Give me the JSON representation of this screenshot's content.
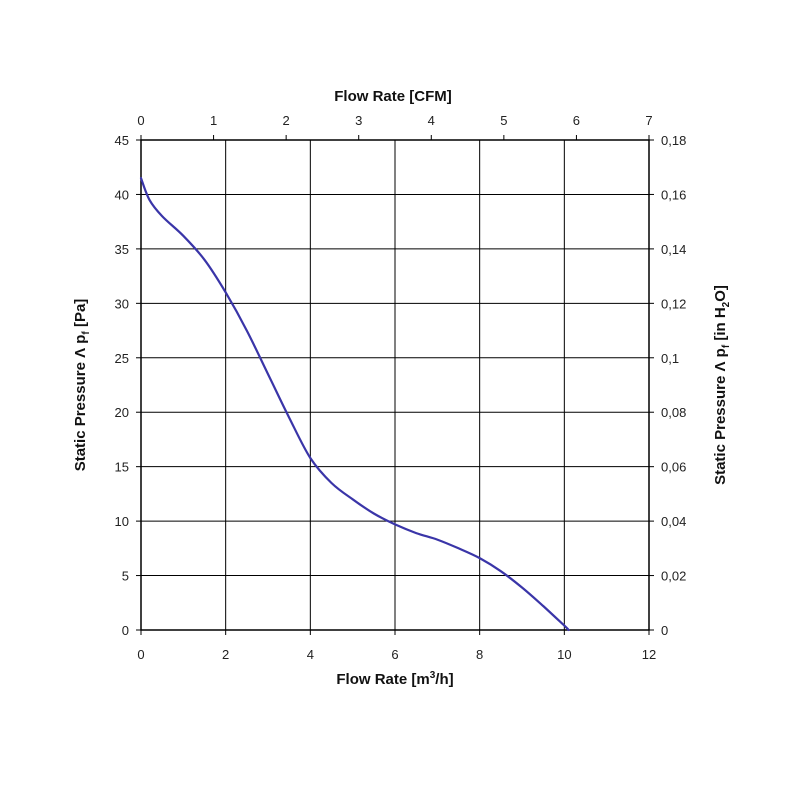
{
  "chart_data": {
    "type": "line",
    "title": "",
    "xlabel": {
      "prefix": "Flow Rate [m",
      "sup": "3",
      "suffix": "/h]"
    },
    "ylabel": {
      "prefix": "Static Pressure Λ p",
      "sub": "f",
      "suffix": " [Pa]"
    },
    "x2label": "Flow Rate [CFM]",
    "y2label": {
      "prefix": "Static Pressure Λ p",
      "sub1": "f",
      "mid": " [in H",
      "sub2": "2",
      "suffix": "O]"
    },
    "xlim": [
      0,
      12
    ],
    "ylim": [
      0,
      45
    ],
    "x2lim": [
      0,
      7
    ],
    "y2lim": [
      0,
      0.18
    ],
    "x_ticks": [
      "0",
      "2",
      "4",
      "6",
      "8",
      "10",
      "12"
    ],
    "y_ticks": [
      "0",
      "5",
      "10",
      "15",
      "20",
      "25",
      "30",
      "35",
      "40",
      "45"
    ],
    "x2_ticks": [
      "0",
      "1",
      "2",
      "3",
      "4",
      "5",
      "6",
      "7"
    ],
    "y2_ticks": [
      "0",
      "0,02",
      "0,04",
      "0,06",
      "0,08",
      "0,1",
      "0,12",
      "0,14",
      "0,16",
      "0,18"
    ],
    "grid": true,
    "series": [
      {
        "color": "#3a35a8",
        "x": [
          0,
          0.2,
          0.5,
          1.0,
          1.5,
          2.0,
          2.5,
          3.0,
          3.5,
          4.0,
          4.5,
          5.0,
          5.5,
          6.0,
          6.5,
          7.0,
          7.5,
          8.0,
          8.5,
          9.0,
          9.5,
          10.0,
          10.1
        ],
        "y": [
          41.5,
          39.5,
          38.0,
          36.2,
          34.0,
          31.0,
          27.5,
          23.5,
          19.5,
          15.8,
          13.5,
          12.0,
          10.7,
          9.7,
          8.9,
          8.3,
          7.5,
          6.6,
          5.4,
          3.9,
          2.2,
          0.4,
          0
        ]
      }
    ]
  }
}
